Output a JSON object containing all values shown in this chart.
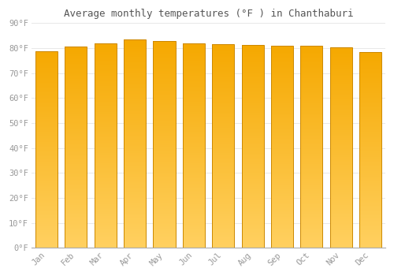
{
  "title": "Average monthly temperatures (°F ) in Chanthaburi",
  "months": [
    "Jan",
    "Feb",
    "Mar",
    "Apr",
    "May",
    "Jun",
    "Jul",
    "Aug",
    "Sep",
    "Oct",
    "Nov",
    "Dec"
  ],
  "values": [
    78.8,
    80.6,
    82.0,
    83.5,
    82.9,
    81.9,
    81.5,
    81.3,
    81.1,
    81.1,
    80.2,
    78.6
  ],
  "ylim": [
    0,
    90
  ],
  "yticks": [
    0,
    10,
    20,
    30,
    40,
    50,
    60,
    70,
    80,
    90
  ],
  "ytick_labels": [
    "0°F",
    "10°F",
    "20°F",
    "30°F",
    "40°F",
    "50°F",
    "60°F",
    "70°F",
    "80°F",
    "90°F"
  ],
  "bar_color_bottom": "#FFD060",
  "bar_color_top": "#F5A800",
  "background_color": "#FFFFFF",
  "grid_color": "#E8E8E8",
  "title_fontsize": 9,
  "tick_fontsize": 7.5,
  "bar_edge_color": "#CC8800",
  "bar_width": 0.75,
  "fig_width": 5.0,
  "fig_height": 3.5
}
